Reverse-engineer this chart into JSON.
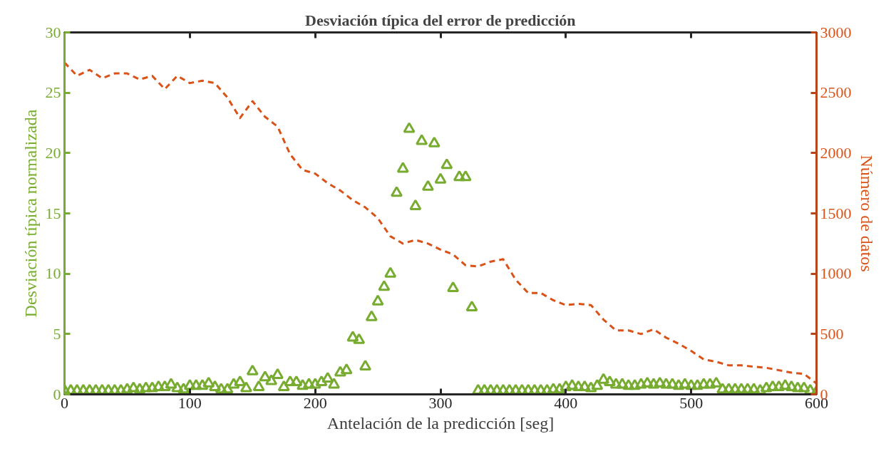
{
  "chart_data": {
    "type": "scatter",
    "title": "Desviación típica del error de predicción",
    "xlabel": "Antelación de la predicción [seg]",
    "ylabel": "Desviación típica normalizada",
    "y2label": "Número de datos",
    "xlim": [
      0,
      600
    ],
    "xticks": [
      0,
      100,
      200,
      300,
      400,
      500,
      600
    ],
    "ylim": [
      0,
      30
    ],
    "yticks": [
      0,
      5,
      10,
      15,
      20,
      25,
      30
    ],
    "y2lim": [
      0,
      3000
    ],
    "y2ticks": [
      0,
      500,
      1000,
      1500,
      2000,
      2500,
      3000
    ],
    "grid": false,
    "series": [
      {
        "marker": "triangle",
        "color": "#77ac30",
        "x": [
          0,
          5,
          10,
          15,
          20,
          25,
          30,
          35,
          40,
          45,
          50,
          55,
          60,
          65,
          70,
          75,
          80,
          85,
          90,
          95,
          100,
          105,
          110,
          115,
          120,
          125,
          130,
          135,
          140,
          145,
          150,
          155,
          160,
          165,
          170,
          175,
          180,
          185,
          190,
          195,
          200,
          205,
          210,
          215,
          220,
          225,
          230,
          235,
          240,
          245,
          250,
          255,
          260,
          265,
          270,
          275,
          280,
          285,
          290,
          295,
          300,
          305,
          310,
          315,
          320,
          325,
          330,
          335,
          340,
          345,
          350,
          355,
          360,
          365,
          370,
          375,
          380,
          385,
          390,
          395,
          400,
          405,
          410,
          415,
          420,
          425,
          430,
          435,
          440,
          445,
          450,
          455,
          460,
          465,
          470,
          475,
          480,
          485,
          490,
          495,
          500,
          505,
          510,
          515,
          520,
          525,
          530,
          535,
          540,
          545,
          550,
          555,
          560,
          565,
          570,
          575,
          580,
          585,
          590,
          595,
          600
        ],
        "values": [
          0.3,
          0.3,
          0.3,
          0.3,
          0.3,
          0.3,
          0.3,
          0.3,
          0.3,
          0.3,
          0.4,
          0.5,
          0.4,
          0.5,
          0.5,
          0.6,
          0.6,
          0.8,
          0.5,
          0.4,
          0.7,
          0.7,
          0.7,
          0.9,
          0.6,
          0.4,
          0.4,
          0.8,
          1.0,
          0.5,
          1.9,
          0.6,
          1.4,
          1.1,
          1.6,
          0.6,
          1.0,
          1.0,
          0.7,
          0.8,
          0.8,
          1.0,
          1.3,
          0.8,
          1.8,
          2.0,
          4.7,
          4.5,
          2.3,
          6.4,
          7.7,
          8.9,
          10.0,
          16.7,
          18.7,
          22.0,
          15.6,
          21.0,
          17.2,
          20.8,
          17.8,
          19.0,
          8.8,
          18.0,
          18.0,
          7.2,
          0.3,
          0.3,
          0.3,
          0.3,
          0.3,
          0.3,
          0.3,
          0.3,
          0.3,
          0.3,
          0.3,
          0.3,
          0.4,
          0.4,
          0.6,
          0.7,
          0.6,
          0.6,
          0.5,
          0.7,
          1.2,
          1.0,
          0.8,
          0.8,
          0.7,
          0.7,
          0.8,
          0.9,
          0.8,
          0.9,
          0.8,
          0.8,
          0.7,
          0.8,
          0.7,
          0.7,
          0.8,
          0.8,
          0.9,
          0.4,
          0.4,
          0.4,
          0.4,
          0.4,
          0.4,
          0.3,
          0.5,
          0.6,
          0.6,
          0.7,
          0.6,
          0.5,
          0.5,
          0.3,
          0.2
        ]
      },
      {
        "type": "line",
        "axis": "y2",
        "line_style": "dashed",
        "marker": "none",
        "color": "#d95319",
        "x": [
          0,
          10,
          20,
          30,
          40,
          50,
          60,
          70,
          80,
          90,
          100,
          110,
          120,
          130,
          140,
          150,
          160,
          170,
          180,
          190,
          200,
          210,
          220,
          230,
          240,
          250,
          260,
          270,
          280,
          290,
          300,
          310,
          320,
          330,
          340,
          350,
          360,
          370,
          380,
          390,
          400,
          410,
          420,
          430,
          440,
          450,
          460,
          470,
          480,
          490,
          500,
          510,
          520,
          530,
          540,
          550,
          560,
          570,
          580,
          590,
          600
        ],
        "values": [
          2750,
          2640,
          2690,
          2620,
          2660,
          2660,
          2610,
          2640,
          2530,
          2640,
          2580,
          2600,
          2580,
          2460,
          2290,
          2430,
          2300,
          2220,
          1990,
          1860,
          1830,
          1750,
          1690,
          1610,
          1550,
          1460,
          1310,
          1250,
          1280,
          1250,
          1200,
          1160,
          1070,
          1060,
          1100,
          1120,
          950,
          840,
          840,
          780,
          740,
          750,
          740,
          620,
          530,
          530,
          500,
          540,
          470,
          420,
          360,
          290,
          270,
          240,
          240,
          230,
          220,
          200,
          180,
          170,
          90
        ]
      }
    ]
  }
}
